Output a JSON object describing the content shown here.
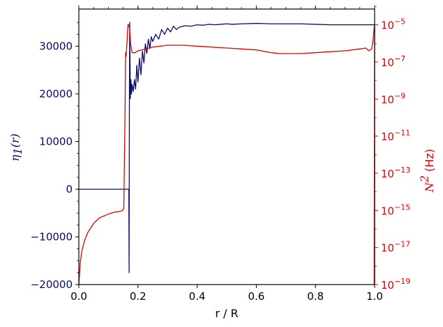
{
  "chart_data": {
    "type": "line",
    "xlabel": "r / R",
    "x_ticks": [
      "0.0",
      "0.2",
      "0.4",
      "0.6",
      "0.8",
      "1.0"
    ],
    "xlim": [
      0.0,
      1.0
    ],
    "left_axis": {
      "label": "η1(r)",
      "label_main": "η",
      "label_sub": "1",
      "label_arg": "(r)",
      "color": "#0a0a6b",
      "ylim": [
        -20000,
        37800
      ],
      "ticks": [
        -20000,
        -10000,
        0,
        10000,
        20000,
        30000
      ],
      "tick_labels": [
        "−20000",
        "−10000",
        "0",
        "10000",
        "20000",
        "30000"
      ]
    },
    "right_axis": {
      "label": "N2 (Hz)",
      "label_math_base": "N",
      "label_math_sup": "2",
      "label_unit": " (Hz)",
      "color": "#e00000",
      "scale": "log",
      "ylim_log10": [
        -19,
        -4.15
      ],
      "ticks_log10": [
        -5,
        -7,
        -9,
        -11,
        -13,
        -15,
        -17,
        -19
      ],
      "tick_exponents": [
        "−5",
        "−7",
        "−9",
        "−11",
        "−13",
        "−15",
        "−17",
        "−19"
      ],
      "tick_base": "10"
    },
    "series": [
      {
        "axis": "left",
        "color": "#0a0a6b",
        "x": [
          0.0,
          0.15,
          0.165,
          0.169,
          0.17,
          0.171,
          0.172,
          0.174,
          0.176,
          0.178,
          0.18,
          0.184,
          0.188,
          0.192,
          0.196,
          0.2,
          0.205,
          0.21,
          0.215,
          0.22,
          0.225,
          0.23,
          0.235,
          0.24,
          0.245,
          0.25,
          0.26,
          0.27,
          0.28,
          0.29,
          0.3,
          0.31,
          0.32,
          0.33,
          0.34,
          0.36,
          0.38,
          0.4,
          0.42,
          0.44,
          0.46,
          0.48,
          0.5,
          0.52,
          0.55,
          0.6,
          0.65,
          0.7,
          0.75,
          0.8,
          0.85,
          0.9,
          0.95,
          1.0
        ],
        "y": [
          0,
          0,
          0,
          0,
          -17500,
          20000,
          35000,
          19000,
          23000,
          20000,
          22000,
          20500,
          23000,
          21000,
          26000,
          22500,
          27500,
          24000,
          29000,
          26500,
          30500,
          28500,
          31500,
          29500,
          32000,
          31000,
          32500,
          31500,
          33500,
          32500,
          33800,
          33000,
          34200,
          33500,
          34000,
          34300,
          34200,
          34500,
          34400,
          34600,
          34500,
          34600,
          34700,
          34600,
          34700,
          34800,
          34700,
          34700,
          34700,
          34600,
          34500,
          34500,
          34500,
          34500
        ]
      },
      {
        "axis": "right",
        "color": "#e00000",
        "x": [
          0.0,
          0.002,
          0.005,
          0.01,
          0.02,
          0.03,
          0.05,
          0.07,
          0.1,
          0.12,
          0.14,
          0.148,
          0.152,
          0.156,
          0.158,
          0.16,
          0.163,
          0.166,
          0.169,
          0.172,
          0.175,
          0.18,
          0.19,
          0.2,
          0.25,
          0.3,
          0.35,
          0.4,
          0.45,
          0.5,
          0.55,
          0.6,
          0.65,
          0.68,
          0.7,
          0.75,
          0.8,
          0.85,
          0.9,
          0.95,
          0.97,
          0.98,
          0.99,
          0.995,
          0.997,
          0.998,
          0.999,
          1.0
        ],
        "y_log10": [
          -19,
          -18.5,
          -17.8,
          -17.2,
          -16.6,
          -16.2,
          -15.7,
          -15.4,
          -15.2,
          -15.1,
          -15.05,
          -15.0,
          -14.9,
          -10.0,
          -6.5,
          -6.7,
          -5.9,
          -5.0,
          -5.0,
          -5.3,
          -6.0,
          -6.5,
          -6.5,
          -6.4,
          -6.2,
          -6.1,
          -6.1,
          -6.15,
          -6.2,
          -6.25,
          -6.3,
          -6.35,
          -6.5,
          -6.55,
          -6.55,
          -6.55,
          -6.5,
          -6.45,
          -6.4,
          -6.3,
          -6.25,
          -6.4,
          -6.3,
          -5.8,
          -5.4,
          -5.2,
          -5.1,
          -5.0
        ]
      },
      {
        "axis": "right",
        "color": "#e00000",
        "x": [
          1.0,
          0.9985,
          0.997
        ],
        "y_log10": [
          -5.0,
          -19.0,
          -19.0
        ]
      }
    ]
  }
}
